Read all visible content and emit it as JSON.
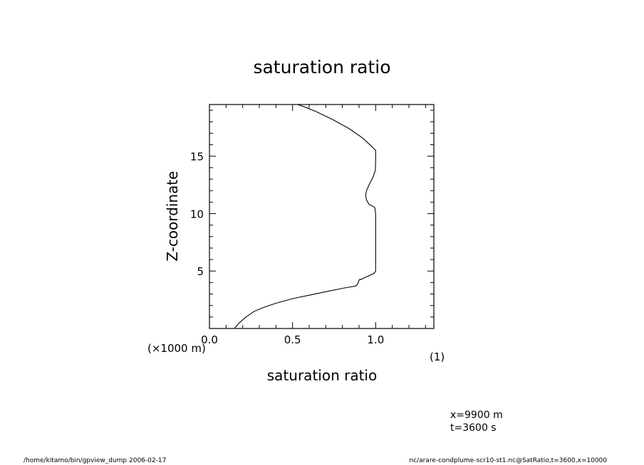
{
  "chart_data": {
    "type": "line",
    "title": "saturation ratio",
    "xlabel": "saturation ratio",
    "ylabel": "Z-coordinate",
    "x_unit": "(1)",
    "y_unit": "(×1000 m)",
    "xlim": [
      0.0,
      1.35
    ],
    "ylim": [
      0.0,
      19.5
    ],
    "x_ticks": [
      0.0,
      0.5,
      1.0
    ],
    "x_tick_labels": [
      "0.0",
      "0.5",
      "1.0"
    ],
    "y_ticks": [
      5,
      10,
      15
    ],
    "y_tick_labels": [
      "5",
      "10",
      "15"
    ],
    "grid": false,
    "series": [
      {
        "x": [
          0.15,
          0.18,
          0.22,
          0.27,
          0.32,
          0.4,
          0.5,
          0.6,
          0.7,
          0.8,
          0.86,
          0.88,
          0.89,
          0.895,
          0.9,
          0.905,
          0.91,
          0.93,
          0.96,
          0.99,
          1.0,
          1.0,
          1.0,
          0.995,
          0.99,
          0.96,
          0.945,
          0.94,
          0.945,
          0.96,
          0.985,
          0.998,
          1.0,
          1.0,
          0.98,
          0.92,
          0.84,
          0.74,
          0.64,
          0.57,
          0.53
        ],
        "y": [
          0.0,
          0.5,
          1.0,
          1.5,
          1.8,
          2.2,
          2.6,
          2.9,
          3.2,
          3.5,
          3.65,
          3.7,
          3.85,
          4.0,
          4.2,
          4.3,
          4.25,
          4.4,
          4.6,
          4.8,
          5.0,
          7.0,
          10.0,
          10.5,
          10.6,
          10.8,
          11.2,
          11.6,
          12.0,
          12.5,
          13.2,
          13.8,
          14.5,
          15.5,
          15.8,
          16.6,
          17.4,
          18.2,
          18.9,
          19.3,
          19.5
        ]
      }
    ]
  },
  "annotations": {
    "x_value": "x=9900  m",
    "t_value": "t=3600  s"
  },
  "footer": {
    "left": "/home/kitamo/bin/gpview_dump  2006-02-17",
    "right": "nc/arare-condplume-scr10-st1.nc@SatRatio,t=3600,x=10000"
  },
  "colors": {
    "line": "#000000",
    "axis": "#000000",
    "background": "#ffffff"
  }
}
